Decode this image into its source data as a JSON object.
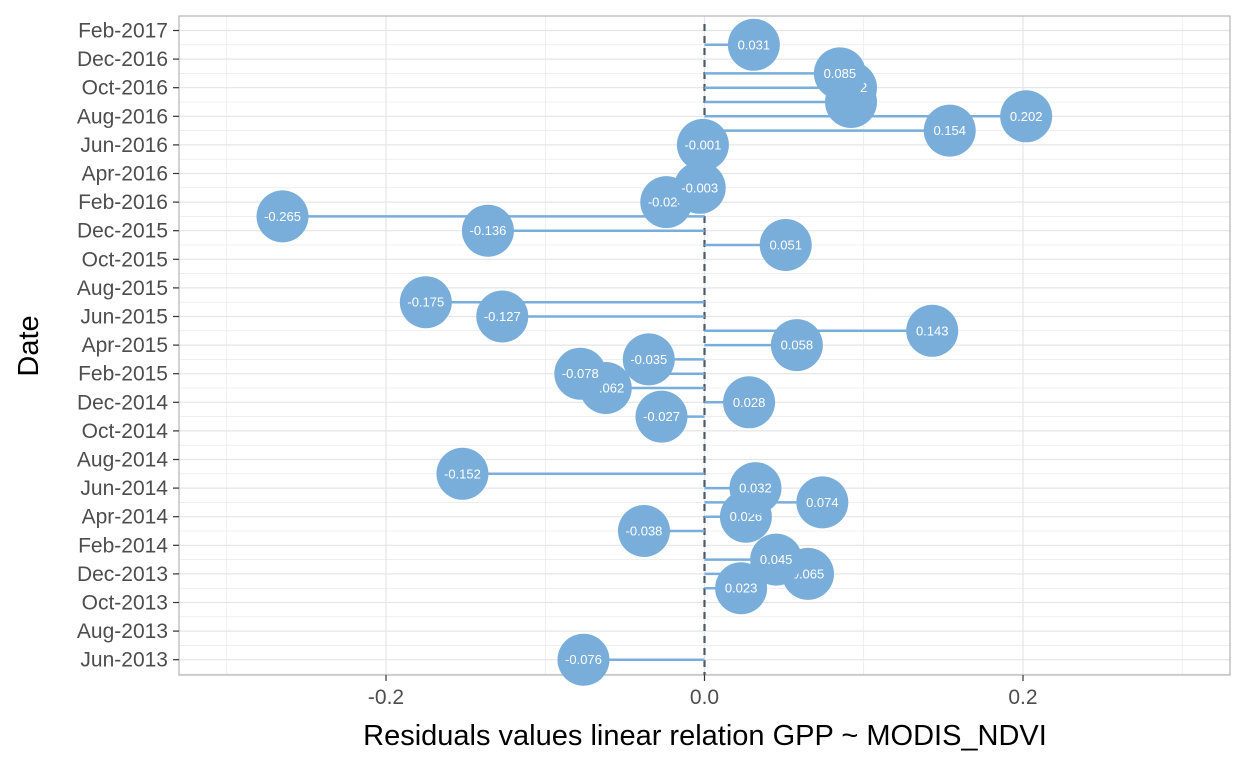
{
  "chart_data": {
    "type": "scatter",
    "style": "lollipop",
    "xlabel": "Residuals values linear relation GPP ~ MODIS_NDVI",
    "ylabel": "Date",
    "xlim": [
      -0.33,
      0.33
    ],
    "x_ticks": [
      -0.2,
      0.0,
      0.2
    ],
    "x_tick_labels": [
      "-0.2",
      "0.0",
      "0.2"
    ],
    "y_ticks": [
      "Jun-2013",
      "Aug-2013",
      "Oct-2013",
      "Dec-2013",
      "Feb-2014",
      "Apr-2014",
      "Jun-2014",
      "Aug-2014",
      "Oct-2014",
      "Dec-2014",
      "Feb-2015",
      "Apr-2015",
      "Jun-2015",
      "Aug-2015",
      "Oct-2015",
      "Dec-2015",
      "Feb-2016",
      "Apr-2016",
      "Jun-2016",
      "Aug-2016",
      "Oct-2016",
      "Dec-2016",
      "Feb-2017"
    ],
    "grid": true,
    "reference_line": 0.0,
    "colors": {
      "point": "#79aedb",
      "stem": "#79aedb",
      "reference": "#4a5a6a",
      "grid": "#e5e5e5",
      "panel_border": "#b3b3b3"
    },
    "points": [
      {
        "date": "Jun-2013",
        "value": -0.076,
        "label": "-0.076"
      },
      {
        "date": "Nov-2013",
        "value": 0.023,
        "label": "0.023"
      },
      {
        "date": "Dec-2013",
        "value": 0.065,
        "label": "0.065"
      },
      {
        "date": "Jan-2014",
        "value": 0.045,
        "label": "0.045"
      },
      {
        "date": "Mar-2014",
        "value": -0.038,
        "label": "-0.038"
      },
      {
        "date": "Apr-2014",
        "value": 0.026,
        "label": "0.026"
      },
      {
        "date": "May-2014",
        "value": 0.074,
        "label": "0.074"
      },
      {
        "date": "Jun-2014",
        "value": 0.032,
        "label": "0.032"
      },
      {
        "date": "Jul-2014",
        "value": -0.152,
        "label": "-0.152"
      },
      {
        "date": "Nov-2014",
        "value": -0.027,
        "label": "-0.027"
      },
      {
        "date": "Dec-2014",
        "value": 0.028,
        "label": "0.028"
      },
      {
        "date": "Jan-2015",
        "value": -0.062,
        "label": "-0.062"
      },
      {
        "date": "Feb-2015",
        "value": -0.078,
        "label": "-0.078"
      },
      {
        "date": "Mar-2015",
        "value": -0.035,
        "label": "-0.035"
      },
      {
        "date": "Apr-2015",
        "value": 0.058,
        "label": "0.058"
      },
      {
        "date": "May-2015",
        "value": 0.143,
        "label": "0.143"
      },
      {
        "date": "Jun-2015",
        "value": -0.127,
        "label": "-0.127"
      },
      {
        "date": "Jul-2015",
        "value": -0.175,
        "label": "-0.175"
      },
      {
        "date": "Nov-2015",
        "value": 0.051,
        "label": "0.051"
      },
      {
        "date": "Dec-2015",
        "value": -0.136,
        "label": "-0.136"
      },
      {
        "date": "Jan-2016",
        "value": -0.265,
        "label": "-0.265"
      },
      {
        "date": "Feb-2016",
        "value": -0.024,
        "label": "-0.024"
      },
      {
        "date": "Mar-2016",
        "value": -0.003,
        "label": "-0.003"
      },
      {
        "date": "Jun-2016",
        "value": -0.001,
        "label": "-0.001"
      },
      {
        "date": "Jul-2016",
        "value": 0.154,
        "label": "0.154"
      },
      {
        "date": "Aug-2016",
        "value": 0.202,
        "label": "0.202"
      },
      {
        "date": "Sep-2016",
        "value": 0.092,
        "label": "0.092"
      },
      {
        "date": "Oct-2016",
        "value": 0.092,
        "label": "0.092"
      },
      {
        "date": "Nov-2016",
        "value": 0.085,
        "label": "0.085"
      },
      {
        "date": "Jan-2017",
        "value": 0.031,
        "label": "0.031"
      }
    ]
  }
}
